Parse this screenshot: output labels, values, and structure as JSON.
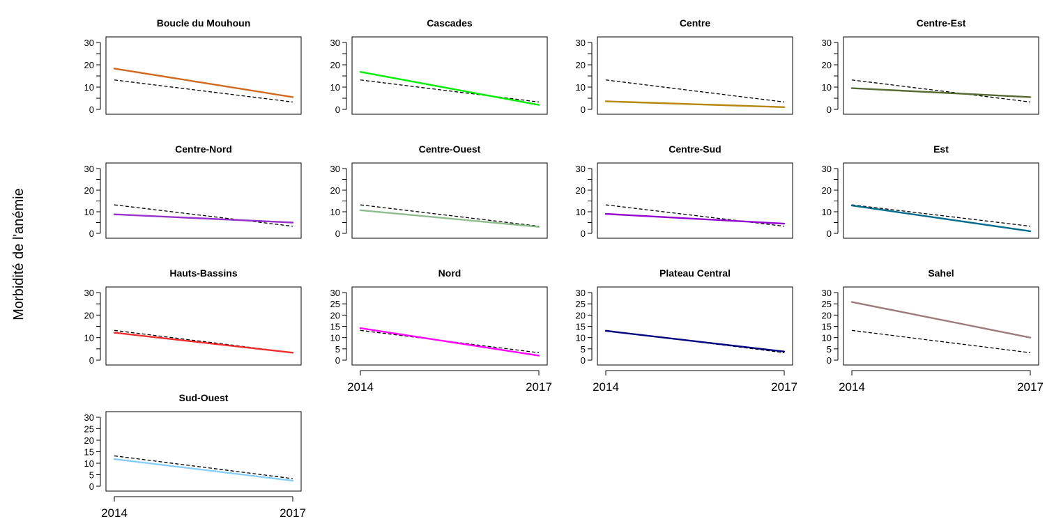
{
  "figure": {
    "ylabel": "Morbidité de l'anémie",
    "reference_color": "#000000",
    "reference_style": "dashed"
  },
  "chart_data": [
    {
      "type": "line",
      "title": "Boucle du Mouhoun",
      "x": [
        2014,
        2017
      ],
      "ylim": [
        0,
        30
      ],
      "yticks": [
        "0",
        "10",
        "20",
        "30"
      ],
      "xticklabels": [],
      "series": [
        {
          "values": [
            18.3,
            5.5
          ],
          "color": "#D2691E"
        }
      ],
      "reference": [
        13.2,
        3.3
      ]
    },
    {
      "type": "line",
      "title": "Cascades",
      "x": [
        2014,
        2017
      ],
      "ylim": [
        0,
        30
      ],
      "yticks": [
        "0",
        "10",
        "20",
        "30"
      ],
      "xticklabels": [],
      "series": [
        {
          "values": [
            16.8,
            2.0
          ],
          "color": "#00EE00"
        }
      ],
      "reference": [
        13.2,
        3.3
      ]
    },
    {
      "type": "line",
      "title": "Centre",
      "x": [
        2014,
        2017
      ],
      "ylim": [
        0,
        30
      ],
      "yticks": [
        "0",
        "10",
        "20",
        "30"
      ],
      "xticklabels": [],
      "series": [
        {
          "values": [
            3.6,
            1.0
          ],
          "color": "#B8860B"
        }
      ],
      "reference": [
        13.2,
        3.3
      ]
    },
    {
      "type": "line",
      "title": "Centre-Est",
      "x": [
        2014,
        2017
      ],
      "ylim": [
        0,
        30
      ],
      "yticks": [
        "0",
        "10",
        "20",
        "30"
      ],
      "xticklabels": [],
      "series": [
        {
          "values": [
            9.5,
            5.5
          ],
          "color": "#556B2F"
        }
      ],
      "reference": [
        13.2,
        3.3
      ]
    },
    {
      "type": "line",
      "title": "Centre-Nord",
      "x": [
        2014,
        2017
      ],
      "ylim": [
        0,
        30
      ],
      "yticks": [
        "0",
        "10",
        "20",
        "30"
      ],
      "xticklabels": [],
      "series": [
        {
          "values": [
            8.8,
            5.0
          ],
          "color": "#9932CC"
        }
      ],
      "reference": [
        13.2,
        3.3
      ]
    },
    {
      "type": "line",
      "title": "Centre-Ouest",
      "x": [
        2014,
        2017
      ],
      "ylim": [
        0,
        30
      ],
      "yticks": [
        "0",
        "10",
        "20",
        "30"
      ],
      "xticklabels": [],
      "series": [
        {
          "values": [
            10.7,
            3.0
          ],
          "color": "#8FBC8F"
        }
      ],
      "reference": [
        13.2,
        3.3
      ]
    },
    {
      "type": "line",
      "title": "Centre-Sud",
      "x": [
        2014,
        2017
      ],
      "ylim": [
        0,
        30
      ],
      "yticks": [
        "0",
        "10",
        "20",
        "30"
      ],
      "xticklabels": [],
      "series": [
        {
          "values": [
            9.0,
            4.5
          ],
          "color": "#9400D3"
        }
      ],
      "reference": [
        13.2,
        3.3
      ]
    },
    {
      "type": "line",
      "title": "Est",
      "x": [
        2014,
        2017
      ],
      "ylim": [
        0,
        30
      ],
      "yticks": [
        "0",
        "10",
        "20",
        "30"
      ],
      "xticklabels": [],
      "series": [
        {
          "values": [
            12.9,
            1.0
          ],
          "color": "#006C8E"
        }
      ],
      "reference": [
        13.2,
        3.3
      ]
    },
    {
      "type": "line",
      "title": "Hauts-Bassins",
      "x": [
        2014,
        2017
      ],
      "ylim": [
        0,
        30
      ],
      "yticks": [
        "0",
        "10",
        "20",
        "30"
      ],
      "xticklabels": [],
      "series": [
        {
          "values": [
            12.2,
            3.3
          ],
          "color": "#EE2C2C"
        }
      ],
      "reference": [
        13.2,
        3.3
      ]
    },
    {
      "type": "line",
      "title": "Nord",
      "x": [
        2014,
        2017
      ],
      "ylim": [
        0,
        30
      ],
      "yticks": [
        "0",
        "5",
        "10",
        "15",
        "20",
        "25",
        "30"
      ],
      "xticklabels": [
        "2014",
        "2017"
      ],
      "series": [
        {
          "values": [
            14.2,
            2.0
          ],
          "color": "#FF00FF"
        }
      ],
      "reference": [
        13.2,
        3.3
      ]
    },
    {
      "type": "line",
      "title": "Plateau Central",
      "x": [
        2014,
        2017
      ],
      "ylim": [
        0,
        30
      ],
      "yticks": [
        "0",
        "5",
        "10",
        "15",
        "20",
        "25",
        "30"
      ],
      "xticklabels": [
        "2014",
        "2017"
      ],
      "series": [
        {
          "values": [
            13.0,
            3.8
          ],
          "color": "#000080"
        }
      ],
      "reference": [
        13.2,
        3.3
      ]
    },
    {
      "type": "line",
      "title": "Sahel",
      "x": [
        2014,
        2017
      ],
      "ylim": [
        0,
        30
      ],
      "yticks": [
        "0",
        "5",
        "10",
        "15",
        "20",
        "25",
        "30"
      ],
      "xticklabels": [
        "2014",
        "2017"
      ],
      "series": [
        {
          "values": [
            25.8,
            10.0
          ],
          "color": "#9E7A7A"
        }
      ],
      "reference": [
        13.2,
        3.3
      ]
    },
    {
      "type": "line",
      "title": "Sud-Ouest",
      "x": [
        2014,
        2017
      ],
      "ylim": [
        0,
        30
      ],
      "yticks": [
        "0",
        "5",
        "10",
        "15",
        "20",
        "25",
        "30"
      ],
      "xticklabels": [
        "2014",
        "2017"
      ],
      "series": [
        {
          "values": [
            11.8,
            2.4
          ],
          "color": "#87CEFA"
        }
      ],
      "reference": [
        13.2,
        3.3
      ]
    }
  ]
}
